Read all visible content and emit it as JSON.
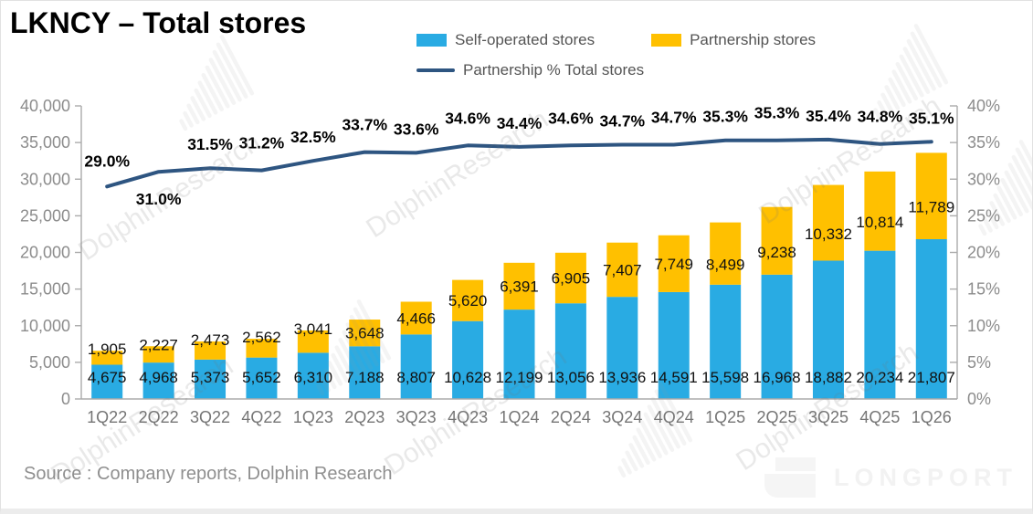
{
  "title": "LKNCY – Total stores",
  "legend": {
    "self_operated": "Self-operated stores",
    "partnership": "Partnership stores",
    "pct_line": "Partnership % Total stores"
  },
  "colors": {
    "self_operated": "#29ABE3",
    "partnership": "#FFC000",
    "line": "#2E5581",
    "axis": "#ABABAB"
  },
  "source": "Source : Company reports, Dolphin Research",
  "brand": "LONGPORT",
  "watermark": "DolphinResearch",
  "chart_data": {
    "type": "bar",
    "subtype": "stacked-bar-with-line",
    "categories": [
      "1Q22",
      "2Q22",
      "3Q22",
      "4Q22",
      "1Q23",
      "2Q23",
      "3Q23",
      "4Q23",
      "1Q24",
      "2Q24",
      "3Q24",
      "4Q24",
      "1Q25",
      "2Q25",
      "3Q25",
      "4Q25",
      "1Q26"
    ],
    "series": [
      {
        "name": "Self-operated stores",
        "type": "bar",
        "stack": true,
        "axis": "left",
        "values": [
          4675,
          4968,
          5373,
          5652,
          6310,
          7188,
          8807,
          10628,
          12199,
          13056,
          13936,
          14591,
          15598,
          16968,
          18882,
          20234,
          21807
        ]
      },
      {
        "name": "Partnership stores",
        "type": "bar",
        "stack": true,
        "axis": "left",
        "values": [
          1905,
          2227,
          2473,
          2562,
          3041,
          3648,
          4466,
          5620,
          6391,
          6905,
          7407,
          7749,
          8499,
          9238,
          10332,
          10814,
          11789
        ]
      },
      {
        "name": "Partnership % Total stores",
        "type": "line",
        "axis": "right",
        "values": [
          29.0,
          31.0,
          31.5,
          31.2,
          32.5,
          33.7,
          33.6,
          34.6,
          34.4,
          34.6,
          34.7,
          34.7,
          35.3,
          35.3,
          35.4,
          34.8,
          35.1
        ]
      }
    ],
    "left_axis": {
      "min": 0,
      "max": 40000,
      "step": 5000,
      "ticks": [
        "0",
        "5,000",
        "10,000",
        "15,000",
        "20,000",
        "25,000",
        "30,000",
        "35,000",
        "40,000"
      ]
    },
    "right_axis": {
      "min": 0,
      "max": 40,
      "step": 5,
      "ticks": [
        "0%",
        "5%",
        "10%",
        "15%",
        "20%",
        "25%",
        "30%",
        "35%",
        "40%"
      ]
    },
    "grid": false,
    "legend_position": "top",
    "title": "LKNCY – Total stores"
  }
}
